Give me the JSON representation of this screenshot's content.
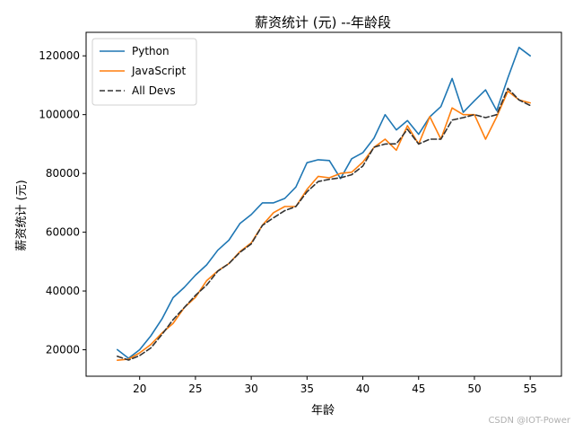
{
  "chart_data": {
    "type": "line",
    "title": "薪资统计 (元) --年龄段",
    "xlabel": "年龄",
    "ylabel": "薪资统计 (元)",
    "xlim": [
      15.2,
      57.8
    ],
    "ylim": [
      11000,
      128000
    ],
    "xticks": [
      20,
      25,
      30,
      35,
      40,
      45,
      50,
      55
    ],
    "yticks": [
      20000,
      40000,
      60000,
      80000,
      100000,
      120000
    ],
    "legend_position": "top-left",
    "grid": false,
    "x": [
      18,
      19,
      20,
      21,
      22,
      23,
      24,
      25,
      26,
      27,
      28,
      29,
      30,
      31,
      32,
      33,
      34,
      35,
      36,
      37,
      38,
      39,
      40,
      41,
      42,
      43,
      44,
      45,
      46,
      47,
      48,
      49,
      50,
      51,
      52,
      53,
      54,
      55
    ],
    "series": [
      {
        "name": "Python",
        "color": "#1f77b4",
        "dash": "solid",
        "values": [
          20046,
          17100,
          20000,
          24744,
          30500,
          37732,
          41247,
          45372,
          48876,
          53850,
          57287,
          63016,
          65998,
          70003,
          70000,
          71496,
          75370,
          83640,
          84666,
          84392,
          78254,
          85000,
          87038,
          91991,
          100000,
          94796,
          97962,
          93302,
          99240,
          102736,
          112285,
          100771,
          104708,
          108423,
          101407,
          112542,
          122870,
          120000
        ]
      },
      {
        "name": "JavaScript",
        "color": "#ff7f0e",
        "dash": "solid",
        "values": [
          16446,
          16791,
          18942,
          21780,
          25704,
          29000,
          34372,
          37810,
          43515,
          46823,
          49293,
          53437,
          56373,
          62375,
          66674,
          68745,
          68746,
          74583,
          79000,
          78508,
          79996,
          80403,
          83820,
          88833,
          91660,
          87892,
          96243,
          90000,
          99313,
          91660,
          102264,
          100000,
          100000,
          91660,
          99240,
          108000,
          105000,
          104000
        ]
      },
      {
        "name": "All Devs",
        "color": "#333333",
        "dash": "dashed",
        "values": [
          17784,
          16500,
          18012,
          20628,
          25206,
          30252,
          34368,
          38496,
          42000,
          46752,
          49320,
          53200,
          56000,
          62316,
          64928,
          67317,
          68748,
          73752,
          77232,
          78000,
          78508,
          79536,
          82488,
          88935,
          90000,
          90056,
          95000,
          90000,
          91633,
          91660,
          98150,
          98964,
          100000,
          98988,
          100000,
          108923,
          105000,
          103117
        ]
      }
    ]
  },
  "watermark": "CSDN @IOT-Power"
}
